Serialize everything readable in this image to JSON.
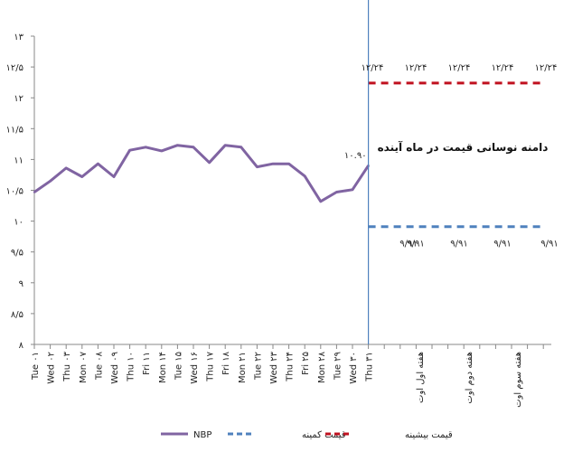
{
  "chart_data": {
    "type": "line",
    "y_ticks": [
      "۸",
      "۸/۵",
      "۹",
      "۹/۵",
      "۱۰",
      "۱۰/۵",
      "۱۱",
      "۱۱/۵",
      "۱۲",
      "۱۲/۵",
      "۱۳"
    ],
    "ylim": [
      8,
      13
    ],
    "categories": [
      "Tue ۰۱",
      "Wed ۰۲",
      "Thu ۰۳",
      "Mon ۰۷",
      "Tue ۰۸",
      "Wed ۰۹",
      "Thu ۱۰",
      "Fri ۱۱",
      "Mon ۱۴",
      "Tue ۱۵",
      "Wed ۱۶",
      "Thu ۱۷",
      "Fri ۱۸",
      "Mon ۲۱",
      "Tue ۲۲",
      "Wed ۲۳",
      "Thu ۲۴",
      "Fri ۲۵",
      "Mon ۲۸",
      "Tue ۲۹",
      "Wed ۳۰",
      "Thu ۳۱"
    ],
    "week_labels": [
      "هفته اول اوت",
      "هفته دوم اوت",
      "هفته سوم اوت"
    ],
    "series": [
      {
        "name": "NBP",
        "color": "#8064a2",
        "values": [
          10.47,
          10.65,
          10.86,
          10.72,
          10.93,
          10.72,
          11.15,
          11.2,
          11.14,
          11.23,
          11.2,
          10.95,
          11.23,
          11.2,
          10.88,
          10.93,
          10.93,
          10.73,
          10.32,
          10.47,
          10.51,
          10.9
        ]
      },
      {
        "name": "قیمت کمینه",
        "color": "#4f81bd",
        "style": "dashed",
        "value": 9.91
      },
      {
        "name": "قیمت بیشینه",
        "color": "#c0111f",
        "style": "dashed",
        "value": 12.24
      }
    ],
    "annotations": {
      "last_value": "۱۰.۹۰",
      "range_title": "دامنه نوسانی قیمت در ماه آینده",
      "max_label": "۱۲/۲۴",
      "min_label": "۹/۹۱"
    },
    "legend_position": "bottom"
  }
}
